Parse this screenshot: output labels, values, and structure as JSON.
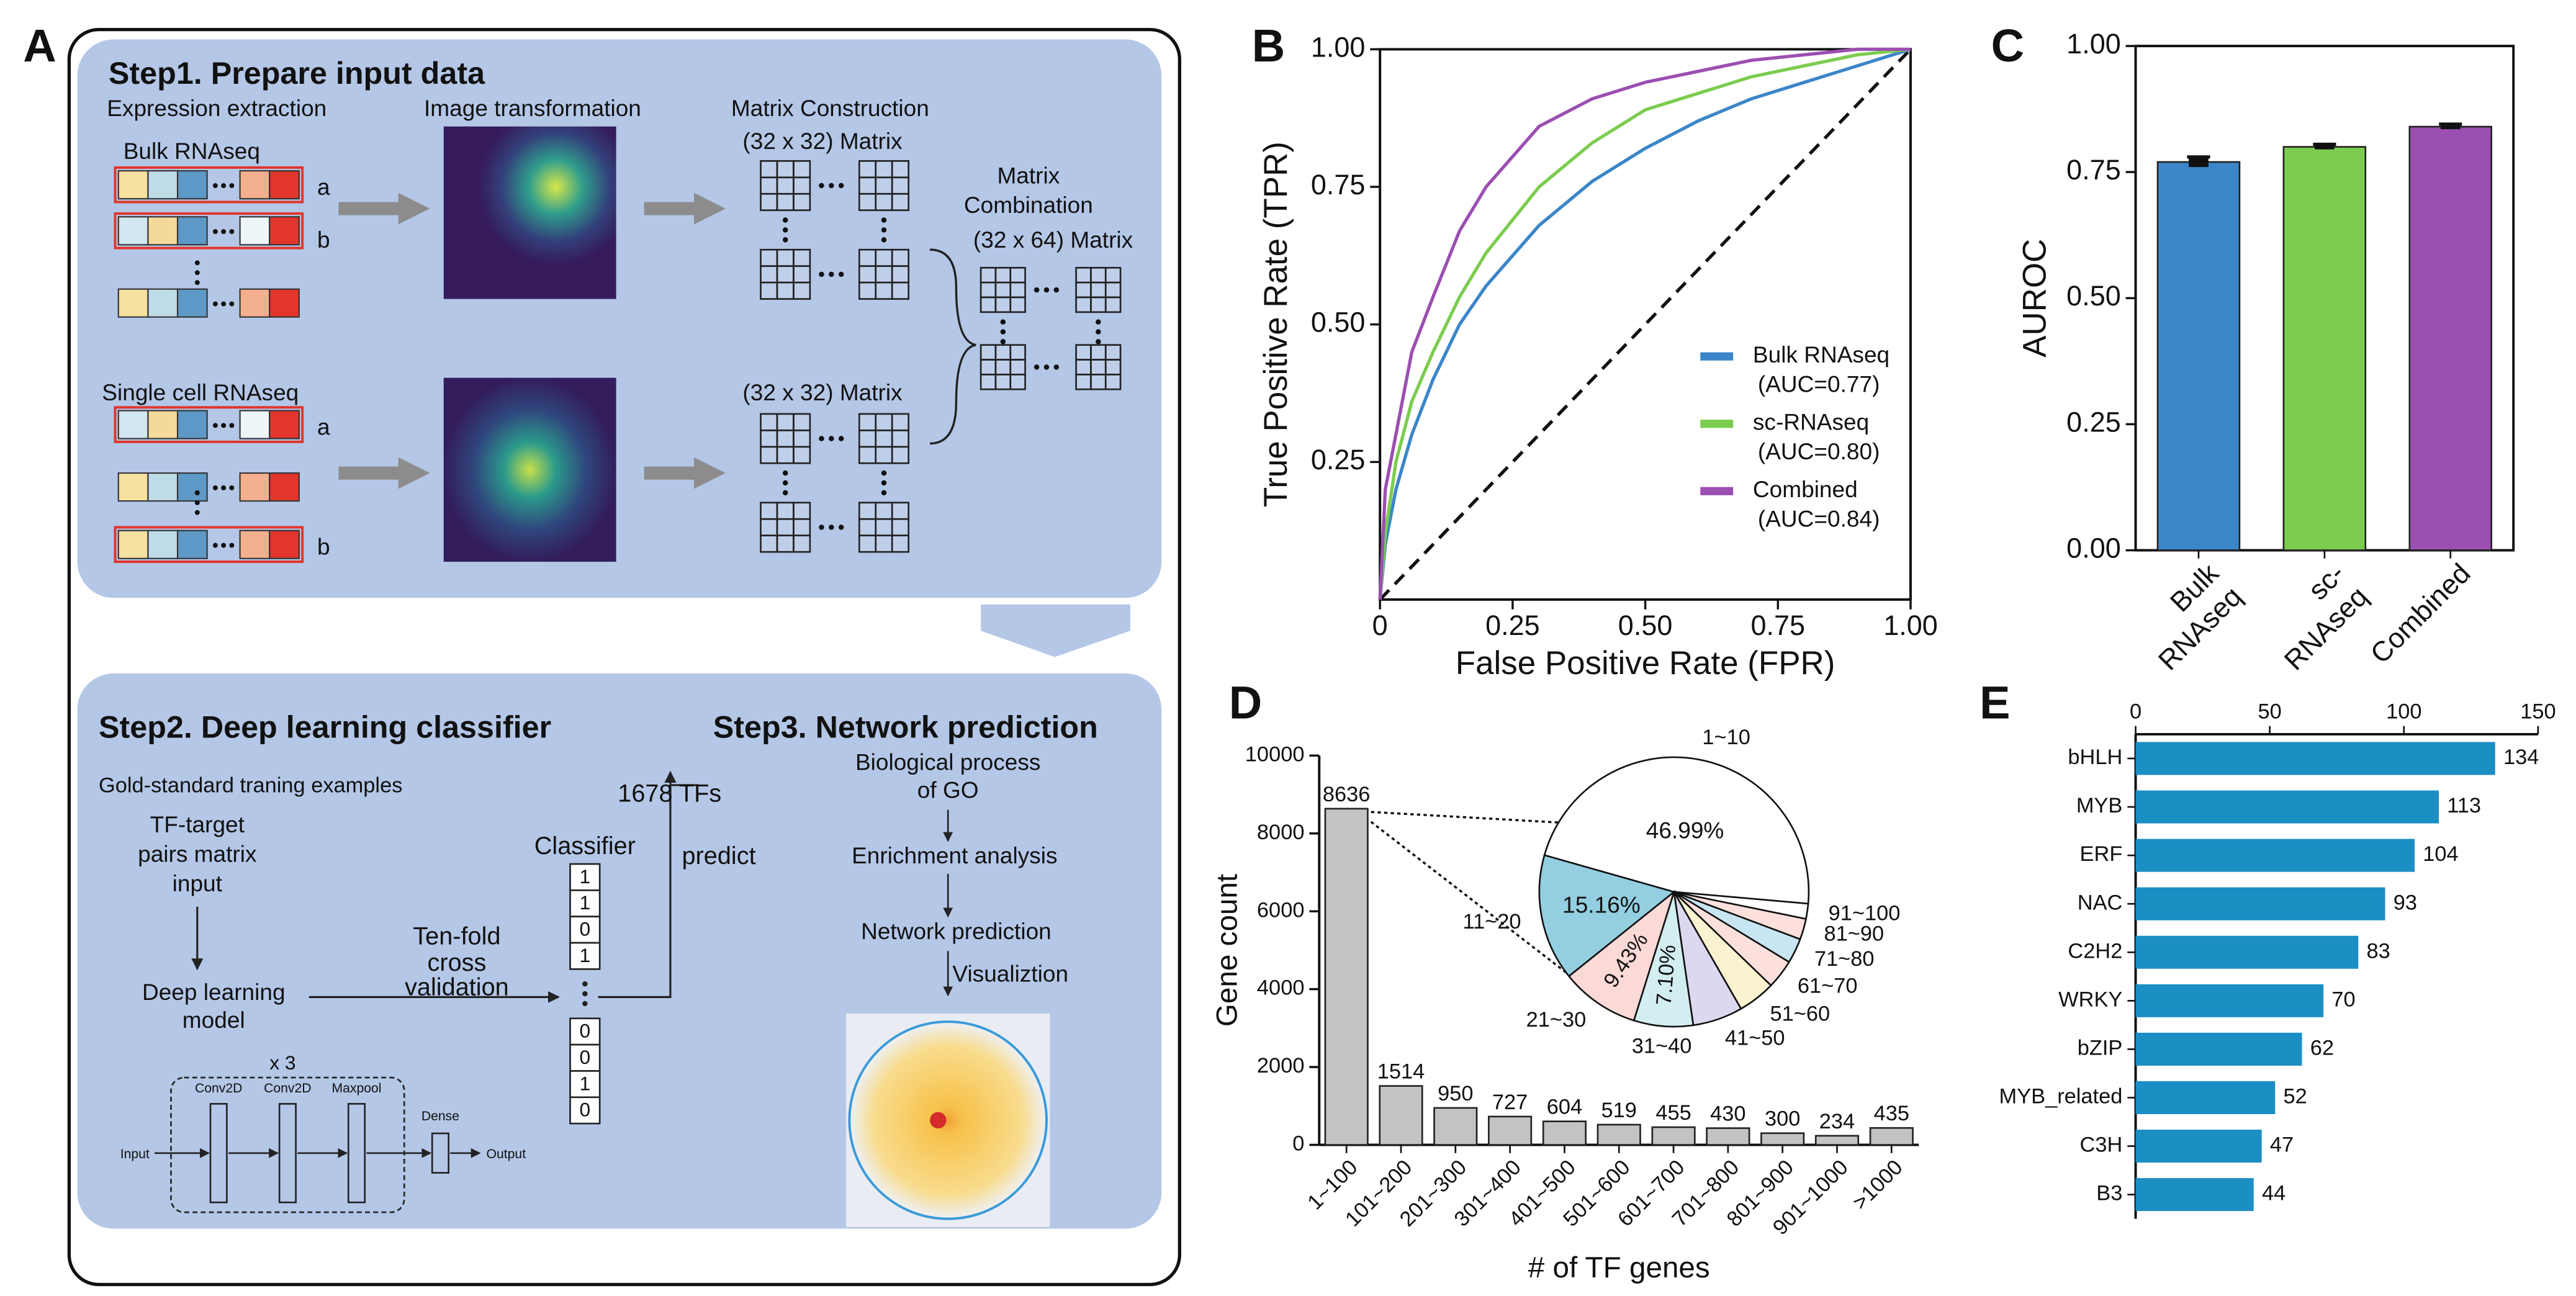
{
  "panel_labels": [
    "A",
    "B",
    "C",
    "D",
    "E"
  ],
  "diagram": {
    "step1": {
      "title": "Step1. Prepare input data",
      "expression_extraction": "Expression extraction",
      "image_transformation": "Image transformation",
      "matrix_construction": "Matrix Construction",
      "matrix_32x32": "(32 x 32) Matrix",
      "matrix_combination": [
        "Matrix",
        "Combination"
      ],
      "matrix_32x64": "(32 x 64) Matrix",
      "bulk": "Bulk RNAseq",
      "single_cell": "Single cell RNAseq",
      "row_a": "a",
      "row_b": "b"
    },
    "step2": {
      "title": "Step2. Deep learning classifier",
      "gold": "Gold-standard traning examples",
      "input": [
        "TF-target",
        "pairs matrix",
        "input"
      ],
      "model": [
        "Deep learning",
        "model"
      ],
      "cv": [
        "Ten-fold",
        "cross",
        "validation"
      ],
      "classifier": "Classifier",
      "tfs": "1678 TFs",
      "predict": "predict",
      "bits": [
        1,
        1,
        0,
        1,
        0,
        0,
        1,
        0
      ],
      "repeat": "x 3",
      "layers": [
        "Conv2D",
        "Conv2D",
        "Maxpool"
      ],
      "dense": "Dense",
      "input_label": "Input",
      "output_label": "Output"
    },
    "step3": {
      "title": "Step3. Network prediction",
      "steps": [
        [
          "Biological process",
          "of GO"
        ],
        [
          "Enrichment analysis"
        ],
        [
          "Network prediction"
        ],
        [
          "Visualiztion"
        ]
      ]
    }
  },
  "chart_data": [
    {
      "type": "line",
      "xlabel": "False Positive Rate (FPR)",
      "ylabel": "True Positive Rate (TPR)",
      "x": [
        0,
        0.01,
        0.03,
        0.06,
        0.1,
        0.15,
        0.2,
        0.3,
        0.4,
        0.5,
        0.6,
        0.7,
        0.8,
        0.9,
        1
      ],
      "series": [
        {
          "name": "Bulk RNAseq",
          "auc_label": "(AUC=0.77)",
          "color": "#3b86c8",
          "values": [
            0,
            0.1,
            0.2,
            0.3,
            0.4,
            0.5,
            0.57,
            0.68,
            0.76,
            0.82,
            0.87,
            0.91,
            0.94,
            0.97,
            1
          ]
        },
        {
          "name": "sc-RNAseq",
          "auc_label": "(AUC=0.80)",
          "color": "#7ccc4f",
          "values": [
            0,
            0.12,
            0.25,
            0.36,
            0.45,
            0.55,
            0.63,
            0.75,
            0.83,
            0.89,
            0.92,
            0.95,
            0.97,
            0.99,
            1
          ]
        },
        {
          "name": "Combined",
          "auc_label": "(AUC=0.84)",
          "color": "#9b4fb1",
          "values": [
            0,
            0.2,
            0.3,
            0.45,
            0.55,
            0.67,
            0.75,
            0.86,
            0.91,
            0.94,
            0.96,
            0.98,
            0.99,
            1,
            1
          ]
        }
      ],
      "xlim": [
        0,
        1
      ],
      "ylim": [
        0,
        1
      ],
      "xticks": [
        0,
        0.25,
        {
          "value": 0.5,
          "label": "0.50"
        },
        0.75,
        {
          "value": 1,
          "label": "1.00"
        }
      ],
      "yticks": [
        {
          "value": 0.25,
          "label": "0.25"
        },
        {
          "value": 0.5,
          "label": "0.50"
        },
        {
          "value": 0.75,
          "label": "0.75"
        },
        {
          "value": 1,
          "label": "1.00"
        }
      ],
      "reference_line": true,
      "frame": true,
      "grid": false,
      "legend": "lower right"
    },
    {
      "type": "bar",
      "ylabel": "AUROC",
      "categories": [
        [
          "Bulk",
          "RNAseq"
        ],
        [
          "sc-",
          "RNAseq"
        ],
        [
          "Combined"
        ]
      ],
      "values": [
        0.77,
        0.8,
        0.84
      ],
      "errors": [
        0.01,
        0.005,
        0.005
      ],
      "colors": [
        "#3b86c8",
        "#7ccc4f",
        "#9b4fb1"
      ],
      "ylim": [
        0,
        1
      ],
      "yticks": [
        {
          "value": 0,
          "label": "0.00"
        },
        {
          "value": 0.25,
          "label": "0.25"
        },
        {
          "value": 0.5,
          "label": "0.50"
        },
        {
          "value": 0.75,
          "label": "0.75"
        },
        {
          "value": 1,
          "label": "1.00"
        }
      ],
      "xtick_rotation": 45,
      "frame": true,
      "grid": false,
      "data_labels": false
    },
    {
      "type": "bar",
      "xlabel": "# of TF genes",
      "ylabel": "Gene count",
      "categories": [
        "1~100",
        "101~200",
        "201~300",
        "301~400",
        "401~500",
        "501~600",
        "601~700",
        "701~800",
        "801~900",
        "901~1000",
        ">1000"
      ],
      "values": [
        8636,
        1514,
        950,
        727,
        604,
        519,
        455,
        430,
        300,
        234,
        435
      ],
      "color": "#c3c3c3",
      "ylim": [
        0,
        10000
      ],
      "yticks": [
        0,
        2000,
        4000,
        6000,
        8000,
        10000
      ],
      "xtick_rotation": 45,
      "frame": false,
      "grid": false,
      "data_labels": true
    },
    {
      "type": "pie",
      "categories": [
        "1~10",
        "11~20",
        "21~30",
        "31~40",
        "41~50",
        "51~60",
        "61~70",
        "71~80",
        "81~90",
        "91~100"
      ],
      "values": [
        46.99,
        15.16,
        9.43,
        7.1,
        6,
        4.5,
        3.5,
        3,
        2.5,
        1.82
      ],
      "value_labels": [
        "46.99%",
        "15.16%",
        "9.43%",
        "7.10%",
        null,
        null,
        null,
        null,
        null,
        null
      ],
      "colors": [
        "#ffffff",
        "#93cfe0",
        "#fbd9d6",
        "#d3eef0",
        "#dcd8ef",
        "#fbf2cf",
        "#fde0dc",
        "#c7e5f2",
        "#fde0dc",
        "#ffffff"
      ]
    },
    {
      "type": "hbar",
      "categories": [
        "bHLH",
        "MYB",
        "ERF",
        "NAC",
        "C2H2",
        "WRKY",
        "bZIP",
        "MYB_related",
        "C3H",
        "B3"
      ],
      "values": [
        134,
        113,
        104,
        93,
        83,
        70,
        62,
        52,
        47,
        44
      ],
      "color": "#1b8ec4",
      "xlim": [
        0,
        150
      ],
      "xticks": [
        0,
        50,
        100,
        150
      ],
      "frame": false,
      "grid": false,
      "data_labels": true
    }
  ]
}
